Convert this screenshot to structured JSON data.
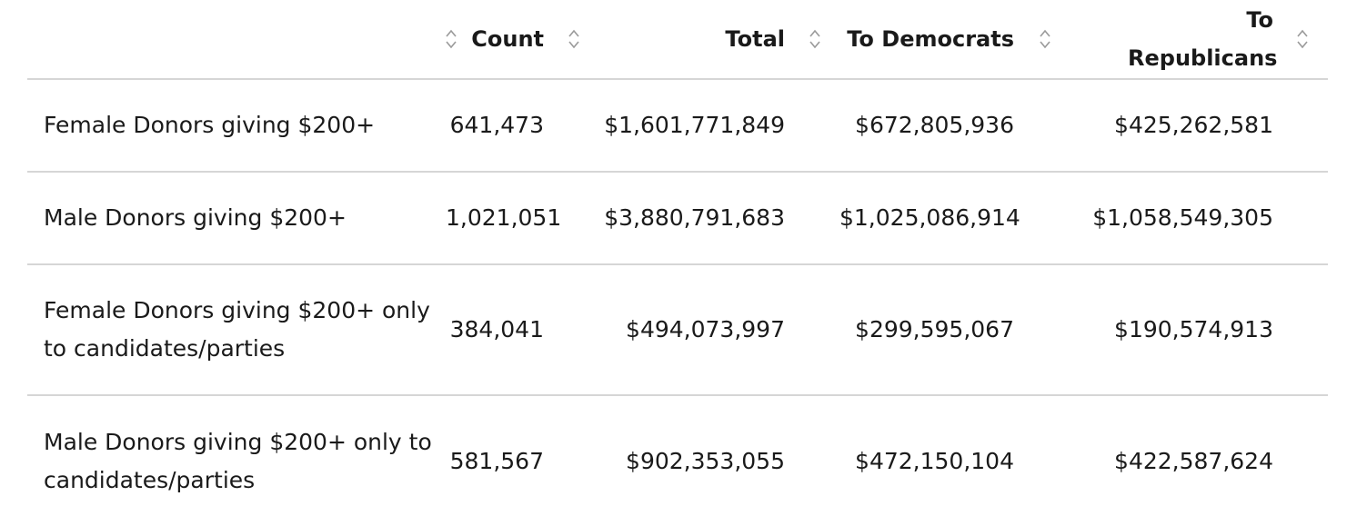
{
  "table": {
    "columns": [
      {
        "key": "label",
        "header": ""
      },
      {
        "key": "count",
        "header": "Count"
      },
      {
        "key": "total",
        "header": "Total"
      },
      {
        "key": "dem",
        "header": "To Democrats"
      },
      {
        "key": "rep",
        "header": "To Republicans"
      }
    ],
    "sort_icon": "sort-updown-icon",
    "rows": [
      {
        "label": "Female Donors giving $200+",
        "count": "641,473",
        "total": "$1,601,771,849",
        "dem": "$672,805,936",
        "rep": "$425,262,581"
      },
      {
        "label": "Male Donors giving $200+",
        "count": "1,021,051",
        "total": "$3,880,791,683",
        "dem": "$1,025,086,914",
        "rep": "$1,058,549,305"
      },
      {
        "label": "Female Donors giving $200+ only to candidates/parties",
        "count": "384,041",
        "total": "$494,073,997",
        "dem": "$299,595,067",
        "rep": "$190,574,913"
      },
      {
        "label": "Male Donors giving $200+ only to candidates/parties",
        "count": "581,567",
        "total": "$902,353,055",
        "dem": "$472,150,104",
        "rep": "$422,587,624"
      }
    ]
  }
}
